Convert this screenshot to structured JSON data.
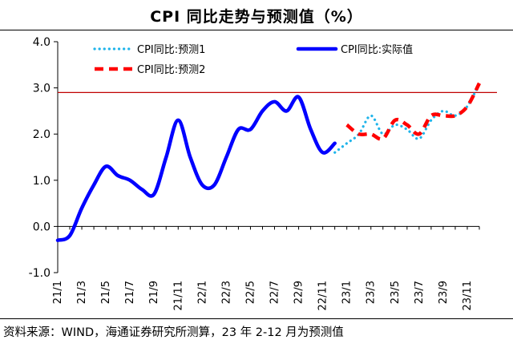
{
  "title": "CPI 同比走势与预测值（%）",
  "source": "资料来源：WIND，海通证券研究所测算，23 年 2-12 月为预测值",
  "colors": {
    "actual": "#0000ff",
    "forecast1": "#1fb4ea",
    "forecast2": "#ff0000",
    "reference": "#c00000"
  },
  "chart_data": {
    "type": "line",
    "x": [
      "21/1",
      "21/2",
      "21/3",
      "21/4",
      "21/5",
      "21/6",
      "21/7",
      "21/8",
      "21/9",
      "21/10",
      "21/11",
      "21/12",
      "22/1",
      "22/2",
      "22/3",
      "22/4",
      "22/5",
      "22/6",
      "22/7",
      "22/8",
      "22/9",
      "22/10",
      "22/11",
      "22/12",
      "23/1",
      "23/2",
      "23/3",
      "23/4",
      "23/5",
      "23/6",
      "23/7",
      "23/8",
      "23/9",
      "23/10",
      "23/11",
      "23/12"
    ],
    "x_tick_labels": [
      "21/1",
      "21/3",
      "21/5",
      "21/7",
      "21/9",
      "21/11",
      "22/1",
      "22/3",
      "22/5",
      "22/7",
      "22/9",
      "22/11",
      "23/1",
      "23/3",
      "23/5",
      "23/7",
      "23/9",
      "23/11"
    ],
    "ylim": [
      -1.0,
      4.0
    ],
    "y_ticks": [
      "4.0",
      "3.0",
      "2.0",
      "1.0",
      "0.0",
      "-1.0"
    ],
    "reference_line": 2.9,
    "legend_position": "top",
    "series": [
      {
        "name": "CPI同比:预测1",
        "style": "dotted",
        "values": [
          null,
          null,
          null,
          null,
          null,
          null,
          null,
          null,
          null,
          null,
          null,
          null,
          null,
          null,
          null,
          null,
          null,
          null,
          null,
          null,
          null,
          null,
          null,
          1.6,
          1.8,
          2.0,
          2.4,
          2.0,
          2.2,
          2.1,
          1.9,
          2.3,
          2.5,
          2.4,
          2.6,
          3.1
        ]
      },
      {
        "name": "CPI同比:实际值",
        "style": "solid",
        "values": [
          -0.3,
          -0.2,
          0.4,
          0.9,
          1.3,
          1.1,
          1.0,
          0.8,
          0.7,
          1.5,
          2.3,
          1.5,
          0.9,
          0.9,
          1.5,
          2.1,
          2.1,
          2.5,
          2.7,
          2.5,
          2.8,
          2.1,
          1.6,
          1.8,
          null,
          null,
          null,
          null,
          null,
          null,
          null,
          null,
          null,
          null,
          null,
          null
        ]
      },
      {
        "name": "CPI同比:预测2",
        "style": "dashed",
        "values": [
          null,
          null,
          null,
          null,
          null,
          null,
          null,
          null,
          null,
          null,
          null,
          null,
          null,
          null,
          null,
          null,
          null,
          null,
          null,
          null,
          null,
          null,
          null,
          null,
          2.2,
          2.0,
          2.0,
          1.9,
          2.3,
          2.2,
          2.0,
          2.4,
          2.4,
          2.4,
          2.6,
          3.1
        ]
      }
    ]
  }
}
